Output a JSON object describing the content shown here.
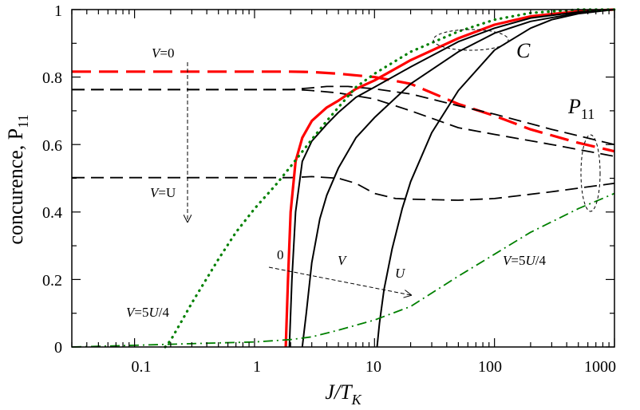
{
  "chart_data": {
    "type": "line",
    "xscale": "log",
    "xlim": [
      0.03,
      1000
    ],
    "ylim": [
      0,
      1
    ],
    "xlabel": {
      "main": "J/T",
      "sub": "K"
    },
    "ylabel": {
      "main": "concurence,  P",
      "sub": "11"
    },
    "x_ticks": [
      {
        "value": 0.1,
        "label": "0.1"
      },
      {
        "value": 1,
        "label": "1"
      },
      {
        "value": 10,
        "label": "10"
      },
      {
        "value": 100,
        "label": "100"
      },
      {
        "value": 1000,
        "label": "1000"
      }
    ],
    "y_ticks": [
      {
        "value": 0,
        "label": "0"
      },
      {
        "value": 0.2,
        "label": "0.2"
      },
      {
        "value": 0.4,
        "label": "0.4"
      },
      {
        "value": 0.6,
        "label": "0.6"
      },
      {
        "value": 0.8,
        "label": "0.8"
      },
      {
        "value": 1,
        "label": "1"
      }
    ],
    "grid": false,
    "series": [
      {
        "group": "P11",
        "style": "dashed-red",
        "color": "#ff0000",
        "x": [
          0.03,
          0.3,
          1,
          2,
          3,
          5,
          10,
          20,
          50,
          100,
          200,
          500,
          1000
        ],
        "y": [
          0.816,
          0.816,
          0.816,
          0.816,
          0.815,
          0.81,
          0.8,
          0.78,
          0.72,
          0.685,
          0.645,
          0.605,
          0.58
        ]
      },
      {
        "group": "P11",
        "style": "dashed-black",
        "color": "#000000",
        "x": [
          0.03,
          1,
          2,
          3,
          4,
          6,
          10,
          20,
          50,
          100,
          300,
          1000
        ],
        "y": [
          0.763,
          0.763,
          0.763,
          0.768,
          0.772,
          0.772,
          0.765,
          0.75,
          0.715,
          0.69,
          0.645,
          0.6
        ]
      },
      {
        "group": "P11",
        "style": "dashed-black",
        "color": "#000000",
        "x": [
          0.03,
          1,
          2,
          2.5,
          3,
          5,
          10,
          20,
          50,
          100,
          300,
          1000
        ],
        "y": [
          0.763,
          0.763,
          0.763,
          0.762,
          0.76,
          0.753,
          0.735,
          0.7,
          0.65,
          0.63,
          0.6,
          0.565
        ]
      },
      {
        "group": "P11",
        "style": "dashed-black",
        "color": "#000000",
        "x": [
          0.03,
          1,
          2,
          3,
          5,
          7,
          10,
          15,
          20,
          50,
          100,
          300,
          1000
        ],
        "y": [
          0.502,
          0.502,
          0.502,
          0.505,
          0.5,
          0.485,
          0.455,
          0.44,
          0.438,
          0.435,
          0.44,
          0.46,
          0.485
        ]
      },
      {
        "group": "C",
        "style": "solid-red",
        "color": "#ff0000",
        "x": [
          1.82,
          1.9,
          2,
          2.2,
          2.5,
          3,
          4,
          5,
          7,
          10,
          20,
          50,
          100,
          200,
          500,
          1000
        ],
        "y": [
          0.0,
          0.2,
          0.4,
          0.55,
          0.62,
          0.67,
          0.71,
          0.73,
          0.765,
          0.79,
          0.85,
          0.915,
          0.955,
          0.98,
          0.995,
          1.0
        ]
      },
      {
        "group": "C",
        "style": "solid-black",
        "color": "#000000",
        "x": [
          1.95,
          2.05,
          2.2,
          2.5,
          3,
          4,
          5,
          7,
          10,
          20,
          50,
          100,
          200,
          500,
          1000
        ],
        "y": [
          0.0,
          0.2,
          0.4,
          0.55,
          0.61,
          0.66,
          0.695,
          0.74,
          0.77,
          0.83,
          0.905,
          0.945,
          0.975,
          0.993,
          1.0
        ]
      },
      {
        "group": "C",
        "style": "solid-black",
        "color": "#000000",
        "x": [
          2.5,
          2.7,
          3,
          3.5,
          4,
          5,
          7,
          10,
          20,
          50,
          100,
          200,
          500,
          1000
        ],
        "y": [
          0.0,
          0.1,
          0.25,
          0.38,
          0.45,
          0.53,
          0.62,
          0.68,
          0.78,
          0.875,
          0.93,
          0.965,
          0.99,
          1.0
        ]
      },
      {
        "group": "C",
        "style": "solid-black",
        "color": "#000000",
        "x": [
          10.5,
          11,
          12,
          14,
          17,
          20,
          30,
          50,
          100,
          200,
          300,
          500,
          1000
        ],
        "y": [
          0.0,
          0.07,
          0.17,
          0.29,
          0.41,
          0.49,
          0.635,
          0.76,
          0.88,
          0.945,
          0.97,
          0.988,
          1.0
        ]
      },
      {
        "group": "C",
        "style": "dotted-green",
        "color": "#008000",
        "x": [
          0.18,
          0.2,
          0.25,
          0.3,
          0.5,
          0.7,
          1,
          1.5,
          2,
          3,
          4,
          5,
          7,
          10,
          20,
          50,
          100,
          200,
          500,
          1000
        ],
        "y": [
          0.0,
          0.02,
          0.08,
          0.13,
          0.26,
          0.34,
          0.41,
          0.48,
          0.535,
          0.615,
          0.67,
          0.71,
          0.77,
          0.81,
          0.875,
          0.935,
          0.97,
          0.99,
          1.0,
          1.0
        ]
      },
      {
        "group": "P11",
        "style": "dashdot-green",
        "color": "#008000",
        "x": [
          0.03,
          0.1,
          0.3,
          1,
          2,
          3,
          5,
          10,
          20,
          50,
          100,
          200,
          500,
          1000
        ],
        "y": [
          0.0,
          0.005,
          0.01,
          0.015,
          0.022,
          0.03,
          0.05,
          0.08,
          0.12,
          0.21,
          0.275,
          0.34,
          0.41,
          0.455
        ]
      }
    ],
    "annotations": {
      "v0": {
        "pre": "V",
        "post": "=0"
      },
      "vu": {
        "pre": "V",
        "post": "=U"
      },
      "v54_left": {
        "pre": "V",
        "post": "=5",
        "mid": "U",
        "end": "/4"
      },
      "v54_right": {
        "pre": "V",
        "post": "=5",
        "mid": "U",
        "end": "/4"
      },
      "arrow_zero": "0",
      "arrow_v": "V",
      "arrow_u": "U",
      "label_c": "C",
      "label_p": "P",
      "label_p_sub": "11"
    }
  }
}
